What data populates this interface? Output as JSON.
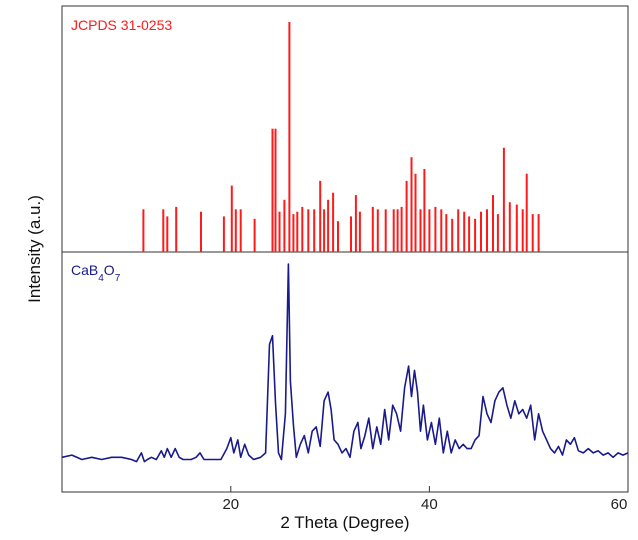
{
  "chart_data": {
    "type": "bar",
    "xlabel": "2 Theta (Degree)",
    "ylabel": "Intensity (a.u.)",
    "xlim": [
      3,
      60
    ],
    "xticks": [
      20,
      40,
      60
    ],
    "xtick_labels": [
      "20",
      "40",
      "60"
    ],
    "grid": false,
    "legend": "none",
    "colors": {
      "reference": "#ff1a1a",
      "sample": "#1a1a8c"
    },
    "panels": [
      {
        "label": "JCPDS 31-0253",
        "type": "stick",
        "series": [
          {
            "name": "JCPDS 31-0253",
            "color": "#ff1a1a",
            "x": [
              11.2,
              13.2,
              13.6,
              14.5,
              17.0,
              19.3,
              20.1,
              20.5,
              21.0,
              22.4,
              24.2,
              24.5,
              24.9,
              25.4,
              25.9,
              26.3,
              26.7,
              27.2,
              27.8,
              28.4,
              29.0,
              29.4,
              29.8,
              30.3,
              30.8,
              32.1,
              32.6,
              33.0,
              34.3,
              34.8,
              35.6,
              36.4,
              36.8,
              37.2,
              37.7,
              38.2,
              38.6,
              39.1,
              39.5,
              40.0,
              40.6,
              41.2,
              41.7,
              42.3,
              42.9,
              43.5,
              44.0,
              44.6,
              45.2,
              45.8,
              46.4,
              46.9,
              47.5,
              48.1,
              48.8,
              49.4,
              49.8,
              50.4,
              51.0
            ],
            "values": [
              18,
              18,
              15,
              19,
              17,
              15,
              28,
              18,
              18,
              14,
              52,
              52,
              17,
              22,
              97,
              16,
              17,
              19,
              18,
              18,
              30,
              18,
              22,
              25,
              13,
              15,
              24,
              17,
              19,
              18,
              18,
              18,
              18,
              19,
              30,
              40,
              33,
              18,
              35,
              18,
              19,
              18,
              16,
              14,
              18,
              17,
              15,
              14,
              17,
              18,
              24,
              16,
              44,
              21,
              20,
              18,
              33,
              16,
              16
            ]
          }
        ]
      },
      {
        "label": "CaB4O7",
        "type": "line",
        "series": [
          {
            "name": "CaB4O7",
            "color": "#1a1a8c",
            "x": [
              3,
              4,
              5,
              6,
              7,
              8,
              9,
              10,
              10.5,
              11,
              11.3,
              11.6,
              12,
              12.5,
              13,
              13.3,
              13.6,
              14,
              14.4,
              14.8,
              15.2,
              16,
              16.5,
              16.9,
              17.3,
              18,
              19,
              19.6,
              20.0,
              20.3,
              20.7,
              21.0,
              21.4,
              21.8,
              22.3,
              23.0,
              23.5,
              23.9,
              24.2,
              24.5,
              24.8,
              25.1,
              25.5,
              25.8,
              26.0,
              26.3,
              26.6,
              27.0,
              27.4,
              27.8,
              28.2,
              28.6,
              29.0,
              29.4,
              29.8,
              30.1,
              30.4,
              30.8,
              31.2,
              31.6,
              32.0,
              32.4,
              32.8,
              33.1,
              33.5,
              33.9,
              34.3,
              34.7,
              35.1,
              35.5,
              35.9,
              36.3,
              36.7,
              37.1,
              37.5,
              37.9,
              38.2,
              38.5,
              38.8,
              39.1,
              39.4,
              39.8,
              40.2,
              40.6,
              41.0,
              41.4,
              41.8,
              42.2,
              42.6,
              43.0,
              43.4,
              43.8,
              44.2,
              44.6,
              45.0,
              45.4,
              45.8,
              46.2,
              46.6,
              47.0,
              47.4,
              47.8,
              48.2,
              48.6,
              49.0,
              49.4,
              49.8,
              50.2,
              50.6,
              51.0,
              51.4,
              51.8,
              52.2,
              52.6,
              53.0,
              53.4,
              53.8,
              54.2,
              54.6,
              55.0,
              55.5,
              56.0,
              56.5,
              57.0,
              57.5,
              58.0,
              58.5,
              59.0,
              59.5,
              60.0
            ],
            "values": [
              10,
              11,
              9,
              10,
              9,
              10,
              10,
              9,
              8,
              12,
              8,
              9,
              10,
              9,
              13,
              10,
              14,
              10,
              14,
              10,
              9,
              9,
              10,
              12,
              9,
              9,
              9,
              14,
              19,
              12,
              18,
              10,
              16,
              11,
              9,
              10,
              12,
              62,
              66,
              35,
              12,
              9,
              30,
              99,
              45,
              25,
              10,
              16,
              20,
              12,
              22,
              24,
              15,
              36,
              40,
              32,
              18,
              16,
              12,
              14,
              10,
              22,
              26,
              14,
              20,
              28,
              14,
              24,
              16,
              32,
              18,
              34,
              30,
              22,
              42,
              52,
              38,
              50,
              40,
              22,
              34,
              18,
              26,
              16,
              28,
              12,
              22,
              12,
              18,
              14,
              16,
              14,
              14,
              18,
              20,
              38,
              30,
              26,
              36,
              40,
              42,
              34,
              28,
              36,
              30,
              32,
              28,
              34,
              18,
              30,
              22,
              18,
              14,
              12,
              15,
              11,
              18,
              16,
              19,
              13,
              12,
              14,
              12,
              13,
              11,
              12,
              10,
              12,
              11,
              12
            ]
          }
        ]
      }
    ]
  }
}
